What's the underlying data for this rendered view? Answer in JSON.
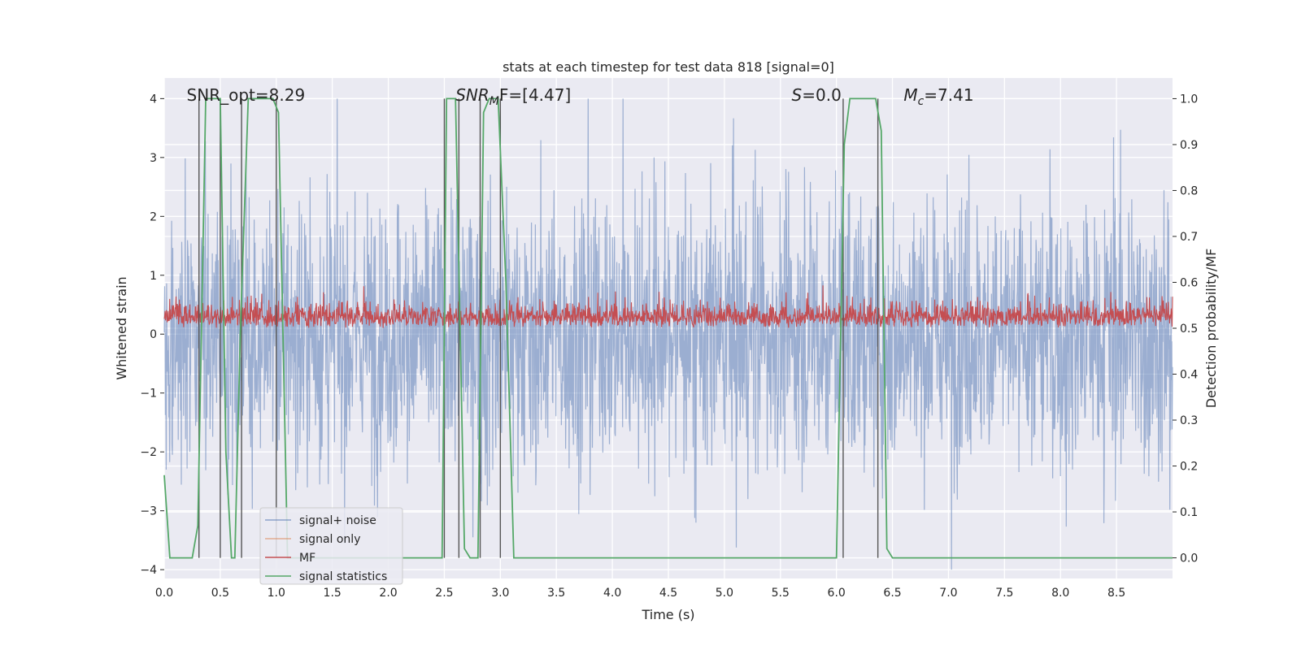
{
  "chart_data": {
    "type": "line",
    "title": "stats at each timestep for test data 818 [signal=0]",
    "xlabel": "Time (s)",
    "ylabel": "Whitened strain",
    "ylabel_right": "Detection probability/MF",
    "xlim": [
      0,
      9
    ],
    "ylim": [
      -4.15,
      4.35
    ],
    "ylim_right": [
      -0.045,
      1.045
    ],
    "x_ticks": [
      "0.0",
      "0.5",
      "1.0",
      "1.5",
      "2.0",
      "2.5",
      "3.0",
      "3.5",
      "4.0",
      "4.5",
      "5.0",
      "5.5",
      "6.0",
      "6.5",
      "7.0",
      "7.5",
      "8.0",
      "8.5"
    ],
    "y_ticks": [
      "-4",
      "-3",
      "-2",
      "-1",
      "0",
      "1",
      "2",
      "3",
      "4"
    ],
    "y_ticks_right": [
      "0.0",
      "0.1",
      "0.2",
      "0.3",
      "0.4",
      "0.5",
      "0.6",
      "0.7",
      "0.8",
      "0.9",
      "1.0"
    ],
    "annotations": {
      "snr_opt": {
        "text": "SNR_opt=8.29",
        "x": 0.2
      },
      "snr_mf": {
        "pre": "SNR",
        "sub": "M",
        "post": "F=[4.47]",
        "x": 2.6
      },
      "s": {
        "pre": "S",
        "post": "=0.0",
        "x": 5.6
      },
      "mc": {
        "pre": "M",
        "sub": "c",
        "post": "=7.41",
        "x": 6.6
      }
    },
    "noise_amplitude": 2.6,
    "series": [
      {
        "name": "signal+ noise",
        "color": "#4c72b0"
      },
      {
        "name": "signal only",
        "color": "#dd8452"
      },
      {
        "name": "MF",
        "color": "#c44e52"
      },
      {
        "name": "signal statistics",
        "color": "#55a868",
        "x": [
          0.0,
          0.05,
          0.1,
          0.25,
          0.3,
          0.37,
          0.42,
          0.5,
          0.55,
          0.6,
          0.63,
          0.68,
          0.75,
          0.97,
          1.02,
          1.1,
          2.48,
          2.52,
          2.6,
          2.68,
          2.73,
          2.8,
          2.85,
          2.9,
          2.98,
          3.05,
          3.12,
          3.2,
          6.0,
          6.07,
          6.12,
          6.35,
          6.4,
          6.45,
          6.5,
          9.0
        ],
        "y": [
          0.18,
          0.0,
          0.0,
          0.0,
          0.07,
          1.0,
          1.0,
          1.0,
          0.23,
          0.0,
          0.0,
          0.5,
          1.0,
          1.0,
          0.97,
          0.0,
          0.0,
          1.0,
          1.0,
          0.02,
          0.0,
          0.0,
          0.97,
          1.0,
          1.0,
          0.6,
          0.0,
          0.0,
          0.0,
          0.9,
          1.0,
          1.0,
          0.93,
          0.02,
          0.0,
          0.0
        ]
      }
    ],
    "vlines": [
      0.31,
      0.5,
      0.69,
      1.0,
      2.5,
      2.63,
      2.82,
      3.0,
      6.06,
      6.37
    ],
    "legend_position": "lower-left",
    "grid": true
  }
}
